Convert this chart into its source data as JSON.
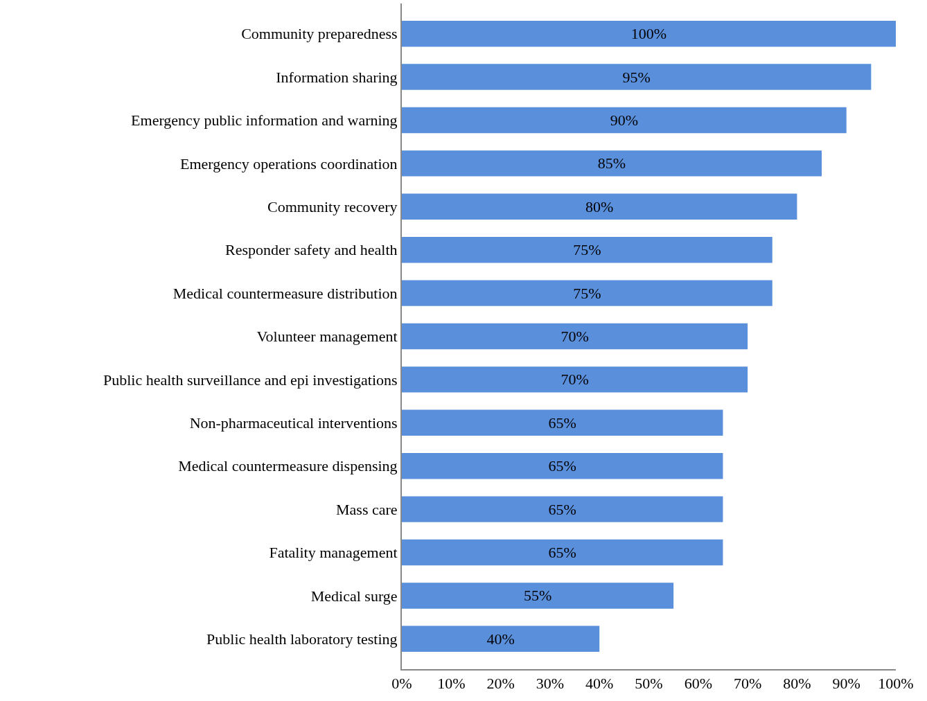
{
  "chart_data": {
    "type": "bar",
    "orientation": "horizontal",
    "categories": [
      "Community preparedness",
      "Information sharing",
      "Emergency public information and warning",
      "Emergency operations coordination",
      "Community recovery",
      "Responder safety and health",
      "Medical countermeasure distribution",
      "Volunteer management",
      "Public health surveillance and epi investigations",
      "Non-pharmaceutical interventions",
      "Medical countermeasure dispensing",
      "Mass care",
      "Fatality management",
      "Medical surge",
      "Public health laboratory testing"
    ],
    "values": [
      100,
      95,
      90,
      85,
      80,
      75,
      75,
      70,
      70,
      65,
      65,
      65,
      65,
      55,
      40
    ],
    "value_labels": [
      "100%",
      "95%",
      "90%",
      "85%",
      "80%",
      "75%",
      "75%",
      "70%",
      "70%",
      "65%",
      "65%",
      "65%",
      "65%",
      "55%",
      "40%"
    ],
    "color": "#5a8fdc",
    "xlim": [
      0,
      100
    ],
    "xticks": [
      {
        "value": 0,
        "label": "0%"
      },
      {
        "value": 10,
        "label": "10%"
      },
      {
        "value": 20,
        "label": "20%"
      },
      {
        "value": 30,
        "label": "30%"
      },
      {
        "value": 40,
        "label": "40%"
      },
      {
        "value": 50,
        "label": "50%"
      },
      {
        "value": 60,
        "label": "60%"
      },
      {
        "value": 70,
        "label": "70%"
      },
      {
        "value": 80,
        "label": "80%"
      },
      {
        "value": 90,
        "label": "90%"
      },
      {
        "value": 100,
        "label": "100%"
      }
    ],
    "grid": false,
    "legend": false
  }
}
